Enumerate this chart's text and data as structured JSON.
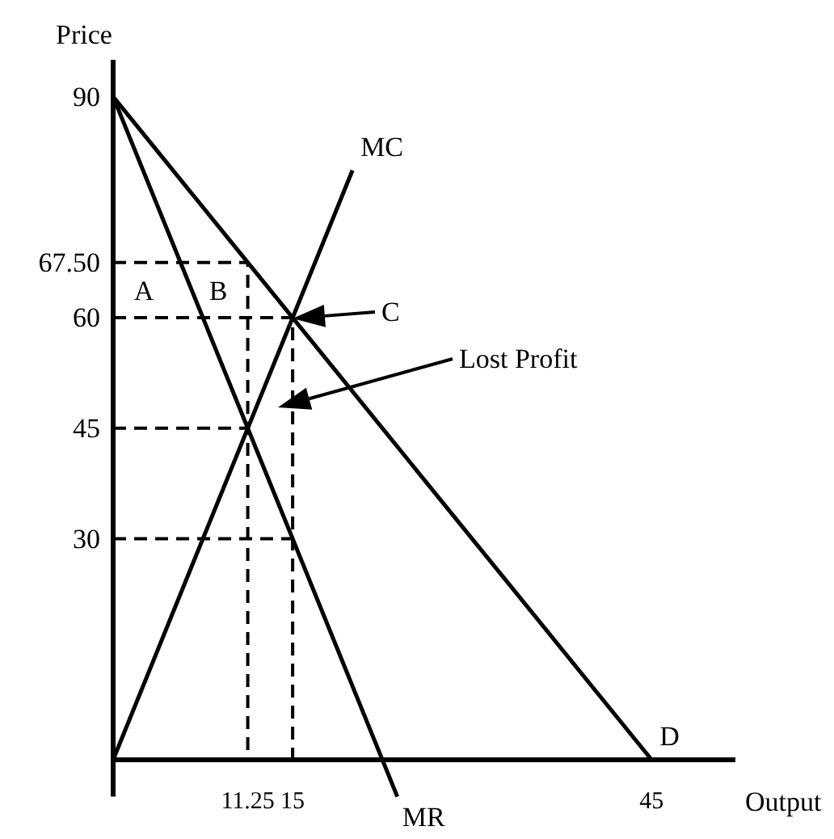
{
  "chart_data": {
    "type": "line",
    "xlabel": "Output",
    "ylabel": "Price",
    "xlim": [
      0,
      52
    ],
    "ylim": [
      -5,
      95
    ],
    "xticks": [
      11.25,
      15,
      45
    ],
    "yticks": [
      30,
      45,
      60,
      {
        "value": 67.5,
        "label": "67.50"
      },
      90
    ],
    "series": [
      {
        "name": "D",
        "color": "#000000",
        "x": [
          0,
          45
        ],
        "values": [
          90,
          0
        ]
      },
      {
        "name": "MR",
        "color": "#000000",
        "x": [
          0,
          23.75
        ],
        "values": [
          90,
          -5
        ]
      },
      {
        "name": "MC",
        "color": "#000000",
        "x": [
          0,
          20
        ],
        "values": [
          0,
          80
        ]
      },
      {
        "color": "#000000",
        "line_style": "dashed",
        "x": [
          0,
          11.25,
          11.25
        ],
        "values": [
          67.5,
          67.5,
          0
        ]
      },
      {
        "color": "#000000",
        "line_style": "dashed",
        "x": [
          0,
          15,
          15
        ],
        "values": [
          60,
          60,
          0
        ]
      },
      {
        "color": "#000000",
        "line_style": "dashed",
        "x": [
          0,
          11.25
        ],
        "values": [
          45,
          45
        ]
      },
      {
        "color": "#000000",
        "line_style": "dashed",
        "x": [
          0,
          15
        ],
        "values": [
          30,
          30
        ]
      }
    ],
    "annotations": [
      "A",
      "B",
      "C",
      "Lost Profit"
    ]
  }
}
